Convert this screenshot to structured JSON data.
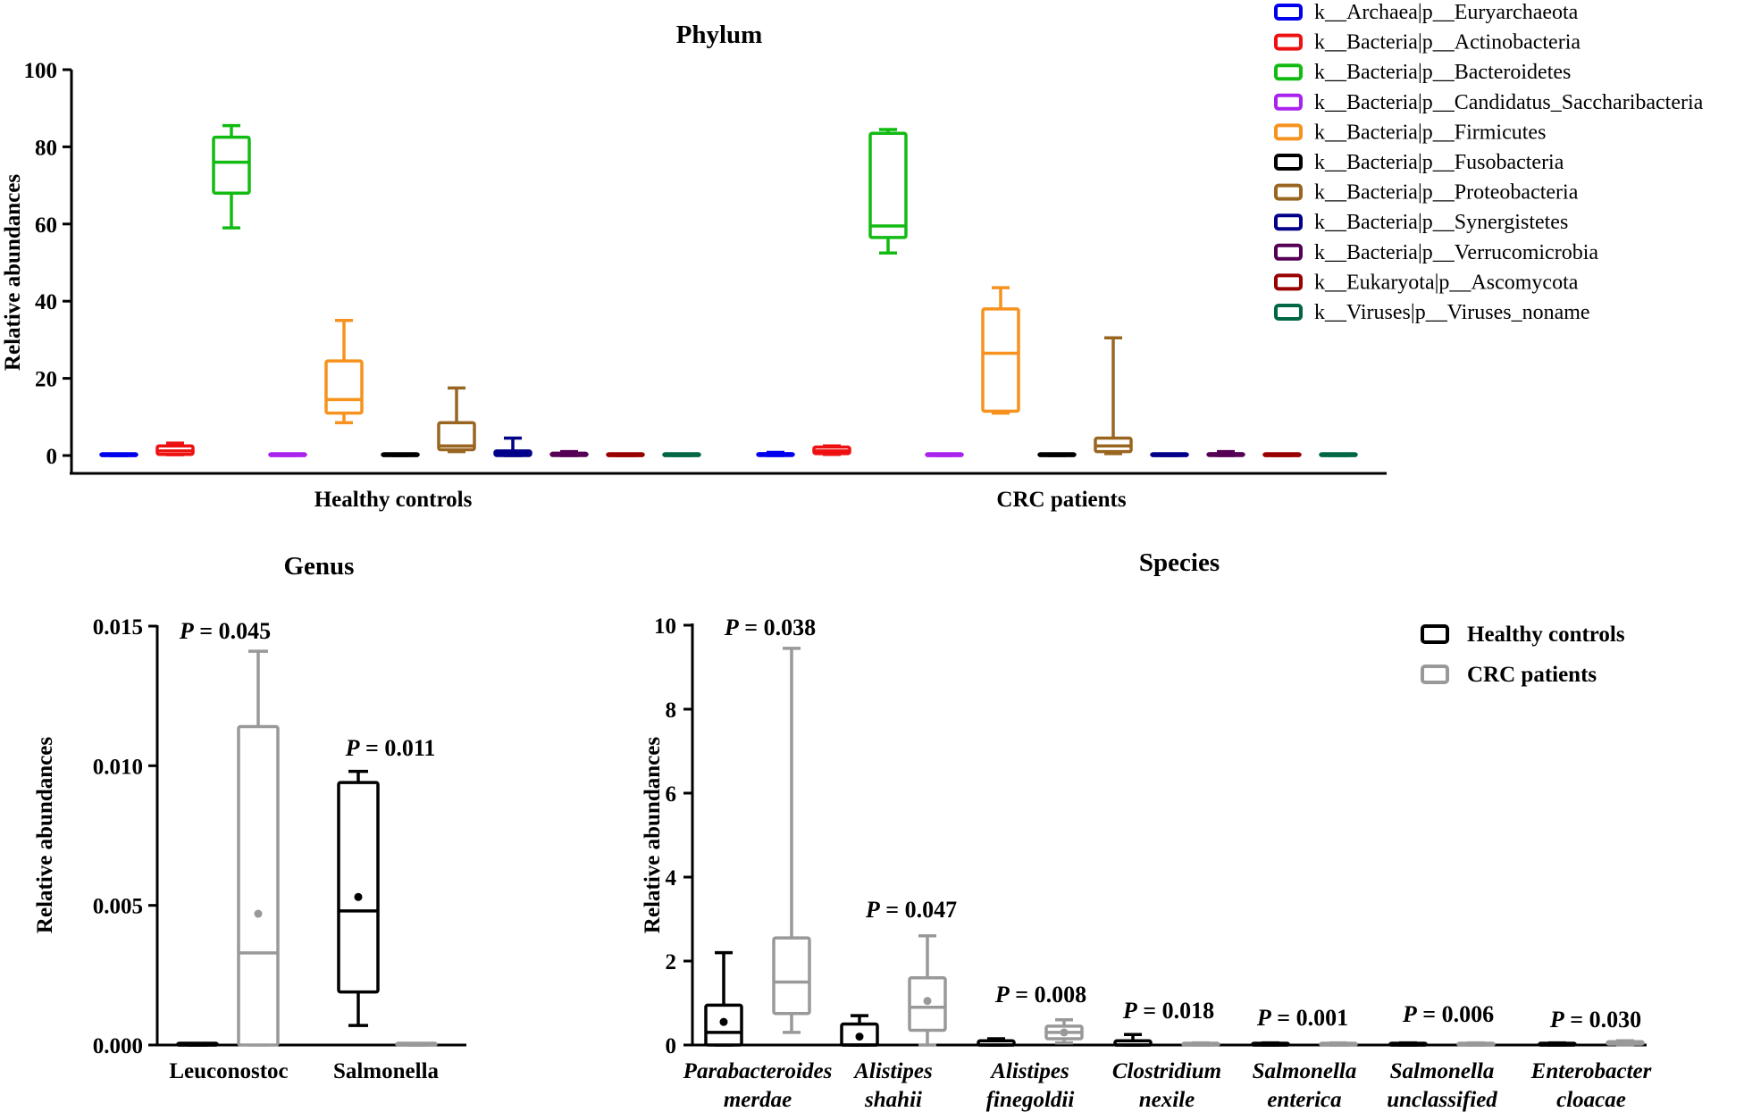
{
  "chart_data": [
    {
      "type": "box",
      "title": "Phylum",
      "ylabel": "Relative abundances",
      "ylim": [
        0,
        100
      ],
      "yticks": [
        0,
        20,
        40,
        60,
        80,
        100
      ],
      "groups": [
        "Healthy controls",
        "CRC patients"
      ],
      "legend": [
        {
          "name": "k__Archaea|p__Euryarchaeota",
          "color": "#0000ee"
        },
        {
          "name": "k__Bacteria|p__Actinobacteria",
          "color": "#ee1111"
        },
        {
          "name": "k__Bacteria|p__Bacteroidetes",
          "color": "#11bb11"
        },
        {
          "name": "k__Bacteria|p__Candidatus_Saccharibacteria",
          "color": "#aa22ee"
        },
        {
          "name": "k__Bacteria|p__Firmicutes",
          "color": "#f7921e"
        },
        {
          "name": "k__Bacteria|p__Fusobacteria",
          "color": "#000000"
        },
        {
          "name": "k__Bacteria|p__Proteobacteria",
          "color": "#996622"
        },
        {
          "name": "k__Bacteria|p__Synergistetes",
          "color": "#000088"
        },
        {
          "name": "k__Bacteria|p__Verrucomicrobia",
          "color": "#550055"
        },
        {
          "name": "k__Eukaryota|p__Ascomycota",
          "color": "#990000"
        },
        {
          "name": "k__Viruses|p__Viruses_noname",
          "color": "#006644"
        }
      ],
      "series": [
        {
          "name": "k__Archaea|p__Euryarchaeota",
          "boxes": [
            [
              0,
              0,
              0,
              0,
              0
            ],
            [
              0,
              0,
              0.2,
              0.5,
              0.8
            ]
          ]
        },
        {
          "name": "k__Bacteria|p__Actinobacteria",
          "boxes": [
            [
              0.2,
              0.3,
              1.2,
              2.5,
              3.2
            ],
            [
              0.3,
              0.5,
              1.2,
              2.2,
              2.5
            ]
          ]
        },
        {
          "name": "k__Bacteria|p__Bacteroidetes",
          "boxes": [
            [
              59,
              68,
              76,
              82.5,
              85.5
            ],
            [
              52.5,
              56.5,
              59.5,
              83.5,
              84.5
            ]
          ]
        },
        {
          "name": "k__Bacteria|p__Candidatus_Saccharibacteria",
          "boxes": [
            [
              0,
              0,
              0,
              0.1,
              0.2
            ],
            [
              0,
              0,
              0,
              0.1,
              0.2
            ]
          ]
        },
        {
          "name": "k__Bacteria|p__Firmicutes",
          "boxes": [
            [
              8.5,
              11,
              14.5,
              24.5,
              35
            ],
            [
              11,
              11.5,
              26.5,
              38,
              43.5
            ]
          ]
        },
        {
          "name": "k__Bacteria|p__Fusobacteria",
          "boxes": [
            [
              0,
              0,
              0,
              0.2,
              0.4
            ],
            [
              0,
              0,
              0,
              0.2,
              0.4
            ]
          ]
        },
        {
          "name": "k__Bacteria|p__Proteobacteria",
          "boxes": [
            [
              1,
              1.5,
              2.5,
              8.5,
              17.5
            ],
            [
              0.5,
              1,
              2.5,
              4.5,
              30.5
            ]
          ]
        },
        {
          "name": "k__Bacteria|p__Synergistetes",
          "boxes": [
            [
              0,
              0,
              0.5,
              1.2,
              4.5
            ],
            [
              0,
              0,
              0,
              0.2,
              0.3
            ]
          ]
        },
        {
          "name": "k__Bacteria|p__Verrucomicrobia",
          "boxes": [
            [
              0,
              0,
              0.2,
              0.6,
              1
            ],
            [
              0,
              0,
              0.2,
              0.5,
              1
            ]
          ]
        },
        {
          "name": "k__Eukaryota|p__Ascomycota",
          "boxes": [
            [
              0,
              0,
              0,
              0.1,
              0.2
            ],
            [
              0,
              0,
              0,
              0.1,
              0.2
            ]
          ]
        },
        {
          "name": "k__Viruses|p__Viruses_noname",
          "boxes": [
            [
              0,
              0,
              0,
              0.1,
              0.2
            ],
            [
              0,
              0,
              0,
              0.1,
              0.2
            ]
          ]
        }
      ]
    },
    {
      "type": "box",
      "title": "Genus",
      "ylabel": "Relative abundances",
      "ylim": [
        0,
        0.015
      ],
      "yticks": [
        "0.000",
        "0.005",
        "0.010",
        "0.015"
      ],
      "categories": [
        "Leuconostoc",
        "Salmonella"
      ],
      "pvalues": [
        "0.045",
        "0.011"
      ],
      "series": [
        {
          "name": "Healthy controls",
          "color": "#000000",
          "boxes": [
            [
              0,
              0,
              0,
              0,
              0
            ],
            [
              0.0007,
              0.0019,
              0.0048,
              0.0094,
              0.0098
            ]
          ],
          "means": [
            null,
            0.0053
          ]
        },
        {
          "name": "CRC patients",
          "color": "#999999",
          "boxes": [
            [
              0,
              0,
              0.0033,
              0.0114,
              0.0141
            ],
            [
              0,
              0,
              0,
              0,
              0
            ]
          ],
          "means": [
            0.0047,
            null
          ]
        }
      ]
    },
    {
      "type": "box",
      "title": "Species",
      "ylabel": "Relative abundances",
      "ylim": [
        0,
        10
      ],
      "yticks": [
        0,
        2,
        4,
        6,
        8,
        10
      ],
      "categories": [
        [
          "Parabacteroides",
          "merdae"
        ],
        [
          "Alistipes",
          "shahii"
        ],
        [
          "Alistipes",
          "finegoldii"
        ],
        [
          "Clostridium",
          "nexile"
        ],
        [
          "Salmonella",
          "enterica"
        ],
        [
          "Salmonella",
          "unclassified"
        ],
        [
          "Enterobacter",
          "cloacae"
        ]
      ],
      "pvalues": [
        "0.038",
        "0.047",
        "0.008",
        "0.018",
        "0.001",
        "0.006",
        "0.030"
      ],
      "legend": [
        {
          "name": "Healthy controls",
          "color": "#000000"
        },
        {
          "name": "CRC patients",
          "color": "#999999"
        }
      ],
      "series": [
        {
          "name": "Healthy controls",
          "color": "#000000",
          "boxes": [
            [
              0,
              0,
              0.3,
              0.95,
              2.2
            ],
            [
              0,
              0,
              0,
              0.5,
              0.7
            ],
            [
              0,
              0,
              0,
              0.1,
              0.15
            ],
            [
              0,
              0,
              0,
              0.1,
              0.25
            ],
            [
              0,
              0,
              0,
              0.02,
              0.05
            ],
            [
              0,
              0,
              0,
              0.02,
              0.05
            ],
            [
              0,
              0,
              0,
              0.02,
              0.05
            ]
          ],
          "means": [
            0.55,
            0.2,
            null,
            null,
            null,
            null,
            null
          ]
        },
        {
          "name": "CRC patients",
          "color": "#999999",
          "boxes": [
            [
              0.3,
              0.75,
              1.5,
              2.55,
              9.45
            ],
            [
              0,
              0.35,
              0.9,
              1.6,
              2.6
            ],
            [
              0.05,
              0.15,
              0.3,
              0.45,
              0.6
            ],
            [
              0,
              0,
              0,
              0.02,
              0.05
            ],
            [
              0,
              0,
              0,
              0.02,
              0.05
            ],
            [
              0,
              0,
              0,
              0.02,
              0.05
            ],
            [
              0,
              0.02,
              0.05,
              0.08,
              0.1
            ]
          ],
          "means": [
            null,
            1.05,
            0.3,
            null,
            null,
            null,
            null
          ]
        }
      ]
    }
  ]
}
